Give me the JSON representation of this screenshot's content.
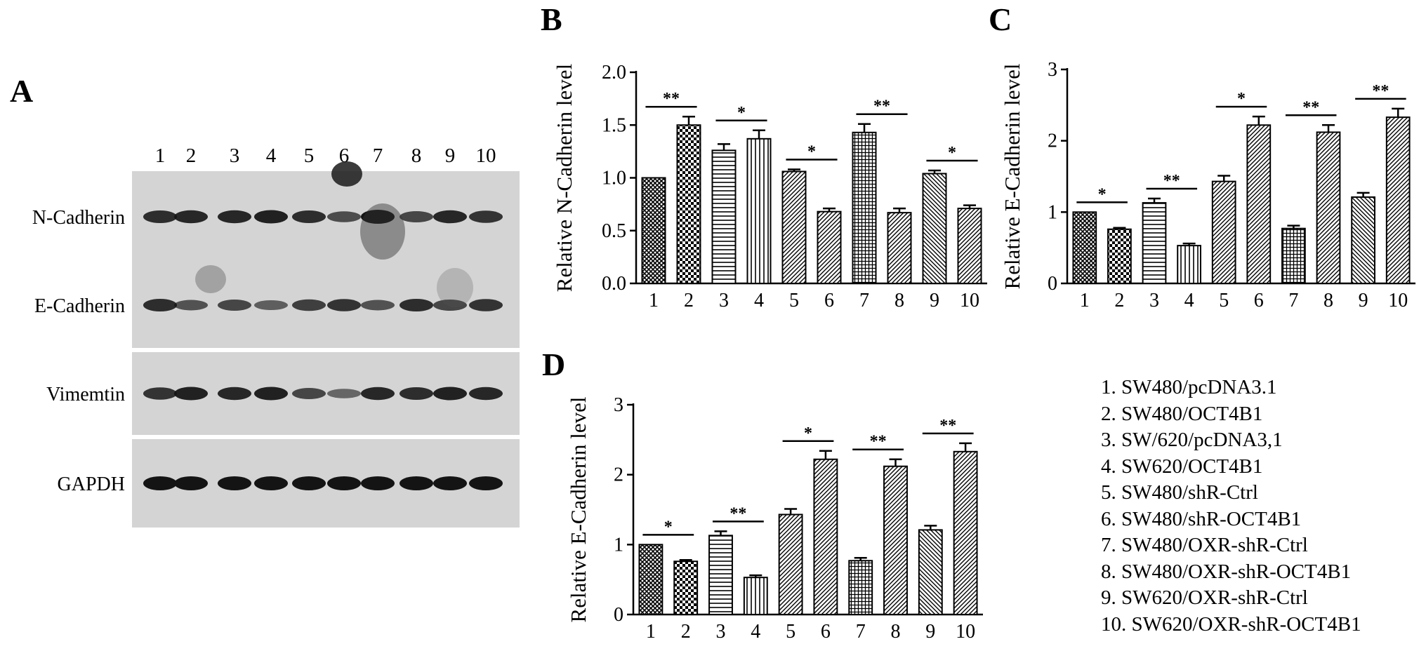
{
  "panels": {
    "a": "A",
    "b": "B",
    "c": "C",
    "d": "D"
  },
  "blot": {
    "lane_labels": [
      "1",
      "2",
      "3",
      "4",
      "5",
      "6",
      "7",
      "8",
      "9",
      "10"
    ],
    "rows": [
      {
        "label": "N-Cadherin",
        "band_intensity": [
          0.8,
          0.85,
          0.85,
          0.9,
          0.8,
          0.55,
          1.0,
          0.6,
          0.85,
          0.75
        ]
      },
      {
        "label": "E-Cadherin",
        "band_intensity": [
          0.8,
          0.5,
          0.6,
          0.4,
          0.65,
          0.75,
          0.5,
          0.8,
          0.6,
          0.75
        ]
      },
      {
        "label": "Vimemtin",
        "band_intensity": [
          0.75,
          0.9,
          0.85,
          0.9,
          0.6,
          0.35,
          0.85,
          0.8,
          0.9,
          0.85
        ]
      },
      {
        "label": "GAPDH",
        "band_intensity": [
          1.0,
          1.0,
          1.0,
          1.0,
          1.0,
          1.0,
          1.0,
          1.0,
          1.0,
          1.0
        ]
      }
    ]
  },
  "legend": [
    "1. SW480/pcDNA3.1",
    "2. SW480/OCT4B1",
    "3. SW/620/pcDNA3,1",
    "4. SW620/OCT4B1",
    "5. SW480/shR-Ctrl",
    "6. SW480/shR-OCT4B1",
    "7. SW480/OXR-shR-Ctrl",
    "8. SW480/OXR-shR-OCT4B1",
    "9. SW620/OXR-shR-Ctrl",
    "10. SW620/OXR-shR-OCT4B1"
  ],
  "colors": {
    "ink": "#000000",
    "blot_background": "#d4d4d4",
    "band": "#141414"
  },
  "chart_data": [
    {
      "panel": "B",
      "type": "bar",
      "categories": [
        "1",
        "2",
        "3",
        "4",
        "5",
        "6",
        "7",
        "8",
        "9",
        "10"
      ],
      "values": [
        1.0,
        1.5,
        1.26,
        1.37,
        1.06,
        0.68,
        1.43,
        0.67,
        1.04,
        0.71
      ],
      "errors": [
        0.0,
        0.08,
        0.06,
        0.08,
        0.02,
        0.03,
        0.08,
        0.04,
        0.03,
        0.03
      ],
      "patterns": [
        "crosshatch",
        "checker",
        "horizontal",
        "vertical",
        "diagonal",
        "diagonal",
        "grid",
        "diagonal",
        "back-diagonal",
        "diagonal"
      ],
      "significance": [
        {
          "pair": [
            1,
            2
          ],
          "label": "**"
        },
        {
          "pair": [
            3,
            4
          ],
          "label": "*"
        },
        {
          "pair": [
            5,
            6
          ],
          "label": "*"
        },
        {
          "pair": [
            7,
            8
          ],
          "label": "**"
        },
        {
          "pair": [
            9,
            10
          ],
          "label": "*"
        }
      ],
      "ylabel": "Relative N-Cadherin level",
      "ylim": [
        0,
        2.0
      ],
      "yticks": [
        "0.0",
        "0.5",
        "1.0",
        "1.5",
        "2.0"
      ],
      "yticks_values": [
        0,
        0.5,
        1.0,
        1.5,
        2.0
      ],
      "grid": false
    },
    {
      "panel": "C",
      "type": "bar",
      "categories": [
        "1",
        "2",
        "3",
        "4",
        "5",
        "6",
        "7",
        "8",
        "9",
        "10"
      ],
      "values": [
        1.0,
        0.76,
        1.13,
        0.53,
        1.43,
        2.22,
        0.77,
        2.12,
        1.21,
        2.33
      ],
      "errors": [
        0.0,
        0.02,
        0.06,
        0.03,
        0.08,
        0.12,
        0.04,
        0.1,
        0.06,
        0.12
      ],
      "patterns": [
        "crosshatch",
        "checker",
        "horizontal",
        "vertical",
        "diagonal",
        "diagonal",
        "grid",
        "diagonal",
        "back-diagonal",
        "diagonal"
      ],
      "significance": [
        {
          "pair": [
            1,
            2
          ],
          "label": "*"
        },
        {
          "pair": [
            3,
            4
          ],
          "label": "**"
        },
        {
          "pair": [
            5,
            6
          ],
          "label": "*"
        },
        {
          "pair": [
            7,
            8
          ],
          "label": "**"
        },
        {
          "pair": [
            9,
            10
          ],
          "label": "**"
        }
      ],
      "ylabel": "Relative E-Cadherin level",
      "ylim": [
        0,
        3
      ],
      "yticks": [
        "0",
        "1",
        "2",
        "3"
      ],
      "yticks_values": [
        0,
        1,
        2,
        3
      ],
      "grid": false
    },
    {
      "panel": "D",
      "type": "bar",
      "categories": [
        "1",
        "2",
        "3",
        "4",
        "5",
        "6",
        "7",
        "8",
        "9",
        "10"
      ],
      "values": [
        1.0,
        0.76,
        1.13,
        0.53,
        1.43,
        2.22,
        0.77,
        2.12,
        1.21,
        2.33
      ],
      "errors": [
        0.0,
        0.02,
        0.06,
        0.03,
        0.08,
        0.12,
        0.04,
        0.1,
        0.06,
        0.12
      ],
      "patterns": [
        "crosshatch",
        "checker",
        "horizontal",
        "vertical",
        "diagonal",
        "diagonal",
        "grid",
        "diagonal",
        "back-diagonal",
        "diagonal"
      ],
      "significance": [
        {
          "pair": [
            1,
            2
          ],
          "label": "*"
        },
        {
          "pair": [
            3,
            4
          ],
          "label": "**"
        },
        {
          "pair": [
            5,
            6
          ],
          "label": "*"
        },
        {
          "pair": [
            7,
            8
          ],
          "label": "**"
        },
        {
          "pair": [
            9,
            10
          ],
          "label": "**"
        }
      ],
      "ylabel": "Relative E-Cadherin level",
      "ylim": [
        0,
        3
      ],
      "yticks": [
        "0",
        "1",
        "2",
        "3"
      ],
      "yticks_values": [
        0,
        1,
        2,
        3
      ],
      "grid": false
    }
  ]
}
